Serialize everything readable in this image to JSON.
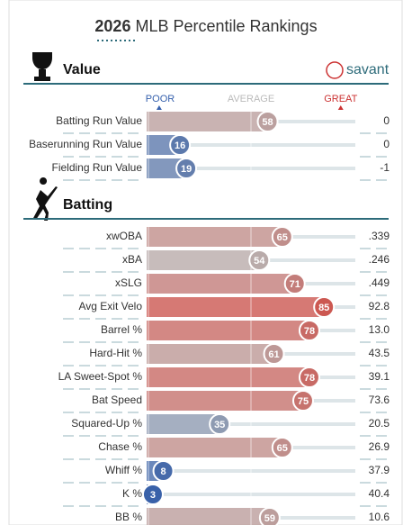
{
  "header": {
    "title_year": "2026",
    "title_rest": "MLB Percentile Rankings"
  },
  "logo": "savant",
  "scale": {
    "poor": "POOR",
    "average": "AVERAGE",
    "great": "GREAT"
  },
  "sections": [
    {
      "title": "Value",
      "rows": [
        {
          "label": "Batting Run Value",
          "percentile": 58,
          "value": "0"
        },
        {
          "label": "Baserunning Run Value",
          "percentile": 16,
          "value": "0"
        },
        {
          "label": "Fielding Run Value",
          "percentile": 19,
          "value": "-1"
        }
      ]
    },
    {
      "title": "Batting",
      "rows": [
        {
          "label": "xwOBA",
          "percentile": 65,
          "value": ".339"
        },
        {
          "label": "xBA",
          "percentile": 54,
          "value": ".246"
        },
        {
          "label": "xSLG",
          "percentile": 71,
          "value": ".449"
        },
        {
          "label": "Avg Exit Velo",
          "percentile": 85,
          "value": "92.8"
        },
        {
          "label": "Barrel %",
          "percentile": 78,
          "value": "13.0"
        },
        {
          "label": "Hard-Hit %",
          "percentile": 61,
          "value": "43.5"
        },
        {
          "label": "LA Sweet-Spot %",
          "percentile": 78,
          "value": "39.1"
        },
        {
          "label": "Bat Speed",
          "percentile": 75,
          "value": "73.6"
        },
        {
          "label": "Squared-Up %",
          "percentile": 35,
          "value": "20.5"
        },
        {
          "label": "Chase %",
          "percentile": 65,
          "value": "26.9"
        },
        {
          "label": "Whiff %",
          "percentile": 8,
          "value": "37.9"
        },
        {
          "label": "K %",
          "percentile": 3,
          "value": "40.4"
        },
        {
          "label": "BB %",
          "percentile": 59,
          "value": "10.6"
        }
      ]
    }
  ]
}
